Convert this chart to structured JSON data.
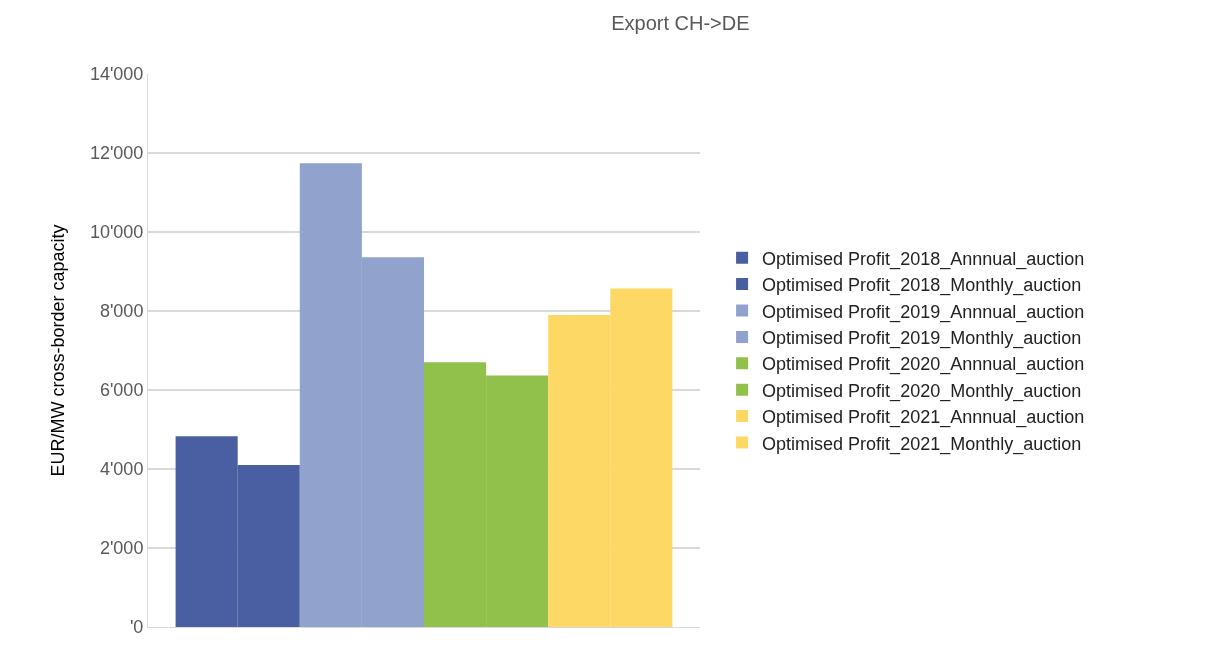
{
  "chart_data": {
    "type": "bar",
    "title": "Export CH->DE",
    "ylabel": "EUR/MW cross-border capacity",
    "categories": [
      null
    ],
    "series": [
      {
        "name": "Optimised Profit_2018_Annnual_auction",
        "color": "#4a5fa2",
        "values": [
          4830
        ]
      },
      {
        "name": "Optimised Profit_2018_Monthly_auction",
        "color": "#4a5fa2",
        "values": [
          4100
        ]
      },
      {
        "name": "Optimised Profit_2019_Annnual_auction",
        "color": "#91a3cd",
        "values": [
          11740
        ]
      },
      {
        "name": "Optimised Profit_2019_Monthly_auction",
        "color": "#91a3cd",
        "values": [
          9360
        ]
      },
      {
        "name": "Optimised Profit_2020_Annnual_auction",
        "color": "#92c14b",
        "values": [
          6700
        ]
      },
      {
        "name": "Optimised Profit_2020_Monthly_auction",
        "color": "#92c14b",
        "values": [
          6370
        ]
      },
      {
        "name": "Optimised Profit_2021_Annnual_auction",
        "color": "#fed865",
        "values": [
          7900
        ]
      },
      {
        "name": "Optimised Profit_2021_Monthly_auction",
        "color": "#fed865",
        "values": [
          8570
        ]
      }
    ],
    "ylim": [
      0,
      14000
    ],
    "yticks": [
      {
        "value": 0,
        "label": "'0"
      },
      {
        "value": 2000,
        "label": "2'000"
      },
      {
        "value": 4000,
        "label": "4'000"
      },
      {
        "value": 6000,
        "label": "6'000"
      },
      {
        "value": 8000,
        "label": "8'000"
      },
      {
        "value": 10000,
        "label": "10'000"
      },
      {
        "value": 12000,
        "label": "12'000"
      },
      {
        "value": 14000,
        "label": "14'000"
      }
    ],
    "grid": "y",
    "legend": "right"
  }
}
